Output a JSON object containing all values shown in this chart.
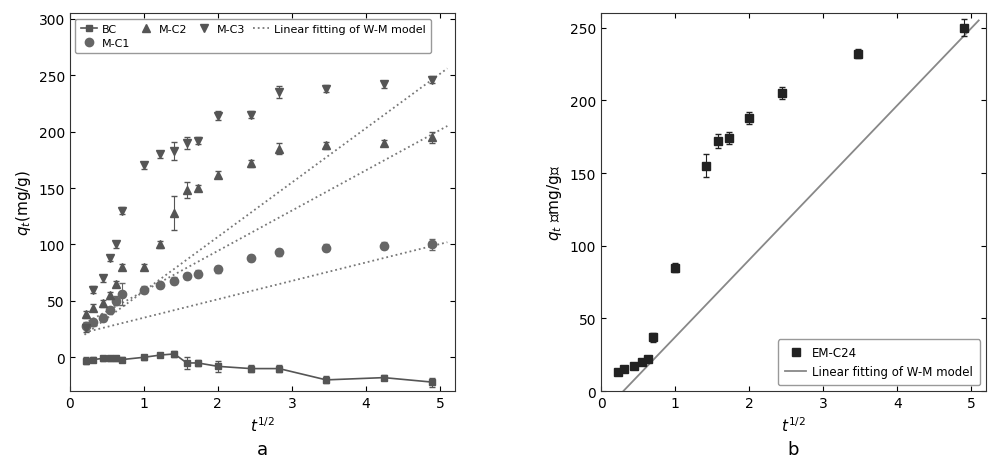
{
  "panel_a": {
    "xlabel": "t¹⁄²",
    "ylabel": "$q_t$(mg/g)",
    "ylim": [
      -30,
      305
    ],
    "xlim": [
      0,
      5.2
    ],
    "yticks": [
      0,
      50,
      100,
      150,
      200,
      250,
      300
    ],
    "xticks": [
      0,
      1,
      2,
      3,
      4,
      5
    ],
    "label_a": "a",
    "BC": {
      "x": [
        0.224,
        0.316,
        0.447,
        0.548,
        0.632,
        0.707,
        1.0,
        1.225,
        1.414,
        1.581,
        1.732,
        2.0,
        2.449,
        2.828,
        3.464,
        4.243,
        4.899
      ],
      "y": [
        -3,
        -2,
        -1,
        -1,
        -1,
        -2,
        0,
        2,
        3,
        -5,
        -5,
        -8,
        -10,
        -10,
        -20,
        -18,
        -22
      ],
      "yerr": [
        3,
        2,
        2,
        2,
        2,
        2,
        2,
        2,
        3,
        5,
        3,
        5,
        3,
        3,
        3,
        2,
        4
      ],
      "color": "#555555",
      "marker": "s",
      "linestyle": "-"
    },
    "MC1": {
      "x": [
        0.224,
        0.316,
        0.447,
        0.548,
        0.632,
        0.707,
        1.0,
        1.225,
        1.414,
        1.581,
        1.732,
        2.0,
        2.449,
        2.828,
        3.464,
        4.243,
        4.899
      ],
      "y": [
        28,
        31,
        35,
        42,
        50,
        56,
        60,
        64,
        68,
        72,
        74,
        78,
        88,
        93,
        97,
        99,
        100
      ],
      "yerr": [
        3,
        3,
        3,
        3,
        4,
        10,
        3,
        3,
        3,
        3,
        3,
        3,
        3,
        3,
        3,
        3,
        5
      ],
      "color": "#666666",
      "marker": "o",
      "linestyle": "none"
    },
    "MC2": {
      "x": [
        0.224,
        0.316,
        0.447,
        0.548,
        0.632,
        0.707,
        1.0,
        1.225,
        1.414,
        1.581,
        1.732,
        2.0,
        2.449,
        2.828,
        3.464,
        4.243,
        4.899
      ],
      "y": [
        38,
        44,
        48,
        55,
        65,
        80,
        80,
        100,
        128,
        148,
        150,
        162,
        172,
        185,
        188,
        190,
        195
      ],
      "yerr": [
        3,
        3,
        3,
        3,
        3,
        3,
        3,
        3,
        15,
        7,
        3,
        3,
        3,
        5,
        3,
        3,
        5
      ],
      "color": "#555555",
      "marker": "^",
      "linestyle": "none"
    },
    "MC3": {
      "x": [
        0.224,
        0.316,
        0.447,
        0.548,
        0.632,
        0.707,
        1.0,
        1.225,
        1.414,
        1.581,
        1.732,
        2.0,
        2.449,
        2.828,
        3.464,
        4.243,
        4.899
      ],
      "y": [
        26,
        60,
        70,
        88,
        100,
        130,
        170,
        180,
        183,
        190,
        192,
        214,
        215,
        235,
        238,
        242,
        246
      ],
      "yerr": [
        4,
        3,
        3,
        3,
        3,
        3,
        3,
        3,
        8,
        5,
        3,
        4,
        3,
        5,
        3,
        3,
        3
      ],
      "color": "#555555",
      "marker": "v",
      "linestyle": "none"
    },
    "fit_MC1": {
      "x": [
        0.2,
        5.1
      ],
      "y": [
        22,
        102
      ]
    },
    "fit_MC2": {
      "x": [
        0.2,
        5.1
      ],
      "y": [
        30,
        205
      ]
    },
    "fit_MC3": {
      "x": [
        0.2,
        5.1
      ],
      "y": [
        20,
        256
      ]
    },
    "fit_color": "#777777"
  },
  "panel_b": {
    "xlabel": "t¹⁄²",
    "ylabel": "$q_t$ （mg/g）",
    "ylim": [
      0,
      260
    ],
    "xlim": [
      0,
      5.2
    ],
    "yticks": [
      0,
      50,
      100,
      150,
      200,
      250
    ],
    "xticks": [
      0,
      1,
      2,
      3,
      4,
      5
    ],
    "label_b": "b",
    "EMC24": {
      "x": [
        0.224,
        0.316,
        0.447,
        0.548,
        0.632,
        0.707,
        1.0,
        1.414,
        1.581,
        1.732,
        2.0,
        2.449,
        3.464,
        4.899
      ],
      "y": [
        13,
        15,
        17,
        20,
        22,
        37,
        85,
        155,
        172,
        174,
        188,
        205,
        232,
        250
      ],
      "yerr": [
        2,
        2,
        2,
        2,
        2,
        3,
        3,
        8,
        5,
        4,
        4,
        4,
        3,
        6
      ],
      "color": "#222222",
      "marker": "s"
    },
    "fit_line": {
      "x": [
        0.3,
        5.1
      ],
      "y": [
        0,
        255
      ],
      "color": "#888888",
      "linestyle": "-"
    }
  },
  "bg_color": "#ffffff",
  "data_color": "#555555",
  "dot_color": "#666666"
}
